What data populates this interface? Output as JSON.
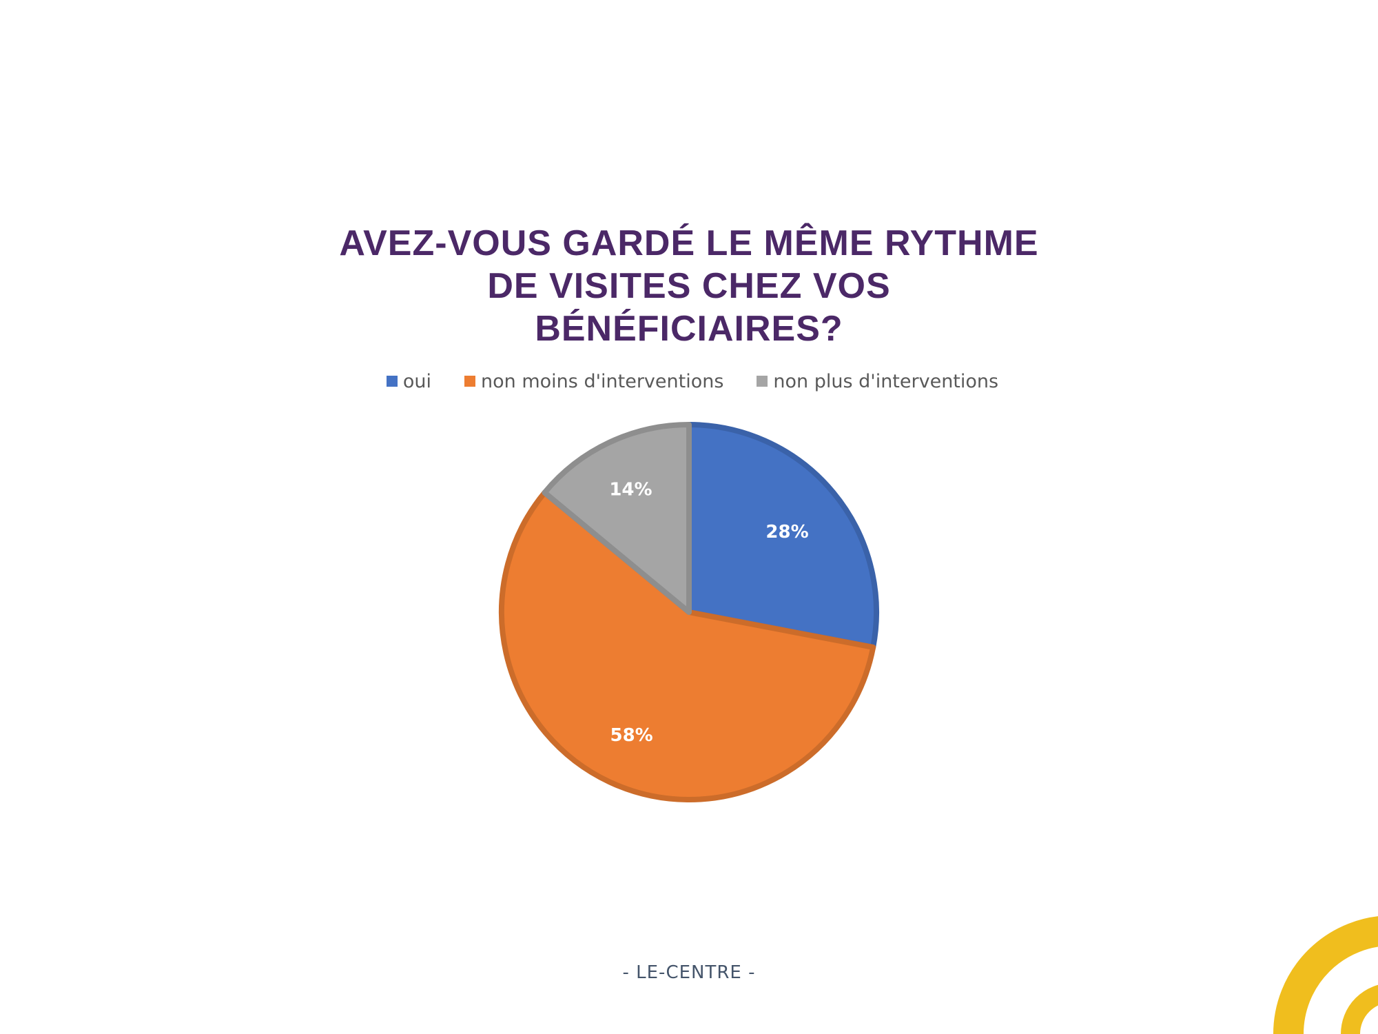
{
  "chart_data": {
    "type": "pie",
    "title": "AVEZ-VOUS GARDÉ LE MÊME RYTHME DE VISITES CHEZ VOS BÉNÉFICIAIRES?",
    "title_lines": [
      "AVEZ-VOUS GARDÉ LE MÊME RYTHME",
      "DE VISITES CHEZ VOS",
      "BÉNÉFICIAIRES?"
    ],
    "legend_placement": "top",
    "categories": [
      "oui",
      "non moins d'interventions",
      "non plus d'interventions"
    ],
    "values": [
      28,
      58,
      14
    ],
    "data_labels": [
      "28%",
      "58%",
      "14%"
    ],
    "colors": [
      "#4472c4",
      "#ed7d31",
      "#a5a5a5"
    ]
  },
  "footer": {
    "text": "- LE-CENTRE -"
  },
  "decoration": {
    "color": "#f0be1e"
  }
}
